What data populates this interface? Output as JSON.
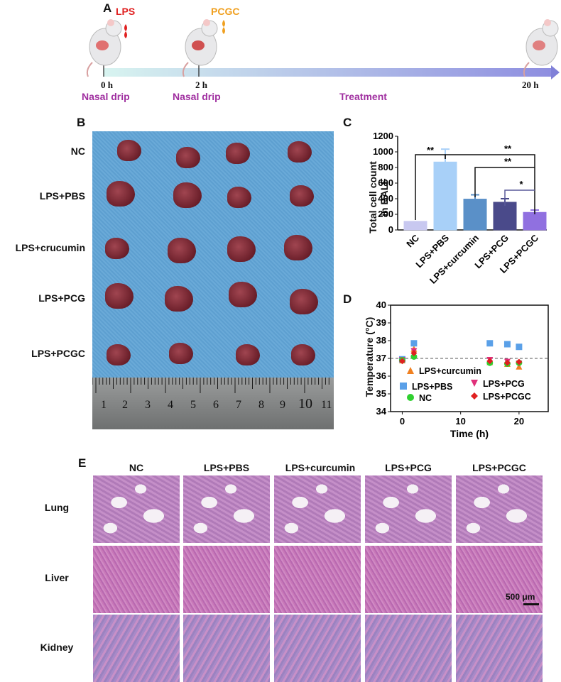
{
  "panelA": {
    "letter": "A",
    "lps": "LPS",
    "pcgc": "PCGC",
    "t0": "0 h",
    "t2": "2 h",
    "t20": "20 h",
    "step1": "Nasal drip",
    "step2": "Nasal drip",
    "step3": "Treatment",
    "colors": {
      "lps": "#e02020",
      "pcgc": "#f0a020",
      "steps": "#a030a0"
    }
  },
  "panelB": {
    "letter": "B",
    "rows": [
      "NC",
      "LPS+PBS",
      "LPS+crucumin",
      "LPS+PCG",
      "LPS+PCGC"
    ],
    "ruler": [
      "1",
      "2",
      "3",
      "4",
      "5",
      "6",
      "7",
      "8",
      "9",
      "10",
      "11"
    ]
  },
  "panelC": {
    "letter": "C",
    "ylabel_line1": "Total cell count",
    "ylabel_line2": "in BALF",
    "yticks": [
      "0",
      "200",
      "400",
      "600",
      "800",
      "1000",
      "1200"
    ],
    "sig": [
      "**",
      "**",
      "**",
      "*"
    ]
  },
  "panelD": {
    "letter": "D",
    "ylabel": "Temperature (°C)",
    "xlabel": "Time (h)",
    "yticks": [
      "34",
      "35",
      "36",
      "37",
      "38",
      "39",
      "40"
    ],
    "xticks": [
      "0",
      "10",
      "20"
    ],
    "legend": [
      "LPS+curcumin",
      "LPS+PBS",
      "LPS+PCG",
      "NC",
      "LPS+PCGC"
    ]
  },
  "panelE": {
    "letter": "E",
    "columns": [
      "NC",
      "LPS+PBS",
      "LPS+curcumin",
      "LPS+PCG",
      "LPS+PCGC"
    ],
    "rows": [
      "Lung",
      "Liver",
      "Kidney"
    ],
    "scalebar": "500 μm"
  },
  "chart_data": [
    {
      "type": "bar",
      "categories": [
        "NC",
        "LPS+PBS",
        "LPS+curcumin",
        "LPS+PCG",
        "LPS+PCGC"
      ],
      "values": [
        110,
        870,
        395,
        355,
        225
      ],
      "errors": [
        0,
        165,
        55,
        45,
        30
      ],
      "colors": [
        "#c8c8f0",
        "#a8d0f8",
        "#5a90c8",
        "#4a4a8a",
        "#9070e0"
      ],
      "ylim": [
        0,
        1200
      ],
      "ylabel": "Total cell count in BALF"
    },
    {
      "type": "scatter",
      "xlabel": "Time (h)",
      "ylabel": "Temperature (°C)",
      "xlim": [
        -2,
        25
      ],
      "ylim": [
        34,
        40
      ],
      "reference_line": 37,
      "series": [
        {
          "name": "LPS+curcumin",
          "marker": "triangle-up",
          "color": "#f08020",
          "x": [
            0,
            2,
            15,
            18,
            20
          ],
          "y": [
            36.9,
            37.55,
            36.8,
            36.7,
            36.55
          ]
        },
        {
          "name": "LPS+PBS",
          "marker": "square",
          "color": "#5aa0e8",
          "x": [
            0,
            2,
            15,
            18,
            20
          ],
          "y": [
            36.95,
            37.85,
            37.85,
            37.8,
            37.65
          ]
        },
        {
          "name": "LPS+PCG",
          "marker": "triangle-down",
          "color": "#e0307a",
          "x": [
            0,
            2,
            15,
            18,
            20
          ],
          "y": [
            36.9,
            37.4,
            36.9,
            36.8,
            36.7
          ]
        },
        {
          "name": "NC",
          "marker": "circle",
          "color": "#30d030",
          "x": [
            0,
            2,
            15,
            18,
            20
          ],
          "y": [
            36.9,
            37.1,
            36.75,
            36.7,
            36.75
          ]
        },
        {
          "name": "LPS+PCGC",
          "marker": "diamond",
          "color": "#e02020",
          "x": [
            0,
            2,
            15,
            18,
            20
          ],
          "y": [
            36.85,
            37.3,
            36.85,
            36.75,
            36.8
          ]
        }
      ]
    }
  ]
}
